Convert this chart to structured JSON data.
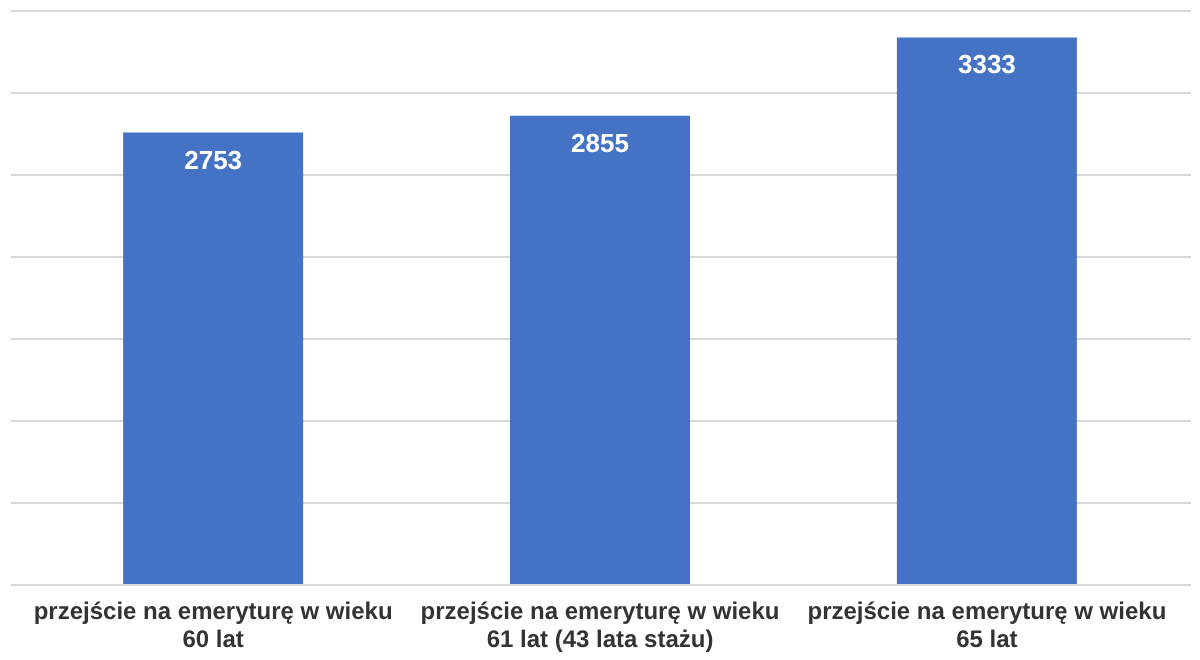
{
  "chart_data": {
    "type": "bar",
    "categories": [
      "przejście na emeryturę w wieku 60 lat",
      "przejście na emeryturę w wieku 61 lat (43 lata stażu)",
      "przejście na emeryturę w wieku 65 lat"
    ],
    "values": [
      2753,
      2855,
      3333
    ],
    "color": "#4472c4",
    "ylim": [
      0,
      3500
    ],
    "yticks": [
      0,
      500,
      1000,
      1500,
      2000,
      2500,
      3000,
      3500
    ],
    "grid": "y",
    "tick_labels": "x",
    "data_labels": true
  }
}
